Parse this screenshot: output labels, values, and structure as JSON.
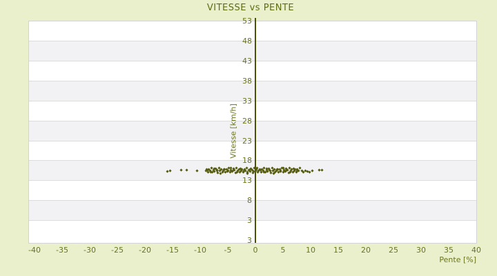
{
  "colors": {
    "background": "#eaefcc",
    "title_text": "#5f6d14",
    "tick_text": "#6b7520",
    "axis_line": "#4a5106",
    "point": "#565c10",
    "band_white": "#ffffff",
    "band_gray": "#f2f2f4",
    "grid_line": "#dcdcdc",
    "plot_border": "#d3d3d3"
  },
  "chart_data": {
    "type": "scatter",
    "title": "VITESSE vs PENTE",
    "xlabel": "Pente [%]",
    "ylabel": "Vitesse [km/h]",
    "xlim": [
      -41,
      40
    ],
    "ylim": [
      -2.5,
      53
    ],
    "x_ticks": [
      -40,
      -35,
      -30,
      -25,
      -20,
      -15,
      -10,
      -5,
      0,
      5,
      10,
      15,
      20,
      25,
      30,
      35,
      40
    ],
    "y_ticks": [
      53,
      48,
      43,
      38,
      33,
      28,
      23,
      18,
      13,
      8,
      3
    ],
    "y_axis_bottom_label": "3",
    "grid": "horizontal-bands-alternating",
    "legend": "none",
    "series": [
      {
        "name": "vitesse",
        "marker": "small-diamond",
        "points": [
          [
            -15.9,
            15.4
          ],
          [
            -15.4,
            15.5
          ],
          [
            -13.4,
            15.8
          ],
          [
            -12.5,
            15.8
          ],
          [
            -10.6,
            15.6
          ],
          [
            -9.0,
            15.6
          ],
          [
            -8.8,
            15.9
          ],
          [
            -8.6,
            15.3
          ],
          [
            -8.4,
            16.0
          ],
          [
            -8.2,
            15.5
          ],
          [
            -8.0,
            16.2
          ],
          [
            -7.8,
            15.2
          ],
          [
            -7.6,
            15.8
          ],
          [
            -7.4,
            15.4
          ],
          [
            -7.2,
            16.1
          ],
          [
            -7.0,
            15.7
          ],
          [
            -6.8,
            15.1
          ],
          [
            -6.6,
            16.3
          ],
          [
            -6.4,
            15.5
          ],
          [
            -6.2,
            15.9
          ],
          [
            -6.0,
            15.3
          ],
          [
            -5.8,
            15.6
          ],
          [
            -5.6,
            15.9
          ],
          [
            -5.4,
            15.3
          ],
          [
            -5.2,
            16.0
          ],
          [
            -5.0,
            15.5
          ],
          [
            -4.8,
            16.2
          ],
          [
            -4.6,
            15.2
          ],
          [
            -4.4,
            15.8
          ],
          [
            -4.2,
            15.4
          ],
          [
            -4.0,
            16.1
          ],
          [
            -3.8,
            15.7
          ],
          [
            -3.6,
            15.1
          ],
          [
            -3.4,
            16.3
          ],
          [
            -3.2,
            15.5
          ],
          [
            -3.0,
            15.9
          ],
          [
            -2.8,
            15.3
          ],
          [
            -2.6,
            15.6
          ],
          [
            -2.4,
            15.9
          ],
          [
            -2.2,
            15.3
          ],
          [
            -2.0,
            16.0
          ],
          [
            -1.8,
            15.5
          ],
          [
            -1.6,
            16.2
          ],
          [
            -1.4,
            15.2
          ],
          [
            -1.2,
            15.8
          ],
          [
            -1.0,
            15.4
          ],
          [
            -0.8,
            16.1
          ],
          [
            -0.6,
            15.7
          ],
          [
            -0.4,
            15.1
          ],
          [
            -0.2,
            16.3
          ],
          [
            0.0,
            15.5
          ],
          [
            0.2,
            15.9
          ],
          [
            0.4,
            15.3
          ],
          [
            0.6,
            15.6
          ],
          [
            0.8,
            15.9
          ],
          [
            1.0,
            15.3
          ],
          [
            1.2,
            16.0
          ],
          [
            1.4,
            15.5
          ],
          [
            1.6,
            16.2
          ],
          [
            1.8,
            15.2
          ],
          [
            2.0,
            15.8
          ],
          [
            2.2,
            15.4
          ],
          [
            2.4,
            16.1
          ],
          [
            2.6,
            15.7
          ],
          [
            2.8,
            15.1
          ],
          [
            3.0,
            16.3
          ],
          [
            3.2,
            15.5
          ],
          [
            3.4,
            15.9
          ],
          [
            3.6,
            15.3
          ],
          [
            3.8,
            15.6
          ],
          [
            4.0,
            15.9
          ],
          [
            4.2,
            15.3
          ],
          [
            4.4,
            16.0
          ],
          [
            4.6,
            15.5
          ],
          [
            4.8,
            16.2
          ],
          [
            5.0,
            15.2
          ],
          [
            5.2,
            15.8
          ],
          [
            5.4,
            15.4
          ],
          [
            5.6,
            16.1
          ],
          [
            5.8,
            15.7
          ],
          [
            6.0,
            15.1
          ],
          [
            6.2,
            16.3
          ],
          [
            6.4,
            15.5
          ],
          [
            6.6,
            15.9
          ],
          [
            6.8,
            15.3
          ],
          [
            7.0,
            15.6
          ],
          [
            7.2,
            15.9
          ],
          [
            7.4,
            15.3
          ],
          [
            7.6,
            16.0
          ],
          [
            7.8,
            15.5
          ],
          [
            8.0,
            16.2
          ],
          [
            -8.7,
            15.8
          ],
          [
            -8.1,
            15.2
          ],
          [
            -7.5,
            16.1
          ],
          [
            -6.9,
            15.5
          ],
          [
            -6.3,
            14.9
          ],
          [
            -5.7,
            15.9
          ],
          [
            -5.1,
            15.4
          ],
          [
            -4.5,
            16.2
          ],
          [
            -3.9,
            15.8
          ],
          [
            -3.3,
            15.2
          ],
          [
            -2.7,
            16.1
          ],
          [
            -2.1,
            15.5
          ],
          [
            -1.5,
            14.9
          ],
          [
            -0.9,
            15.9
          ],
          [
            -0.3,
            15.4
          ],
          [
            0.3,
            16.2
          ],
          [
            0.9,
            15.8
          ],
          [
            1.5,
            15.2
          ],
          [
            2.1,
            16.1
          ],
          [
            2.7,
            15.5
          ],
          [
            3.3,
            14.9
          ],
          [
            3.9,
            15.9
          ],
          [
            4.5,
            15.4
          ],
          [
            5.1,
            16.2
          ],
          [
            5.7,
            15.8
          ],
          [
            6.3,
            15.2
          ],
          [
            6.9,
            16.1
          ],
          [
            7.5,
            15.5
          ],
          [
            8.4,
            15.6
          ],
          [
            8.7,
            15.3
          ],
          [
            9.0,
            15.6
          ],
          [
            9.4,
            15.4
          ],
          [
            9.8,
            15.3
          ],
          [
            10.3,
            15.5
          ],
          [
            11.5,
            15.7
          ],
          [
            12.0,
            15.7
          ]
        ]
      }
    ]
  }
}
